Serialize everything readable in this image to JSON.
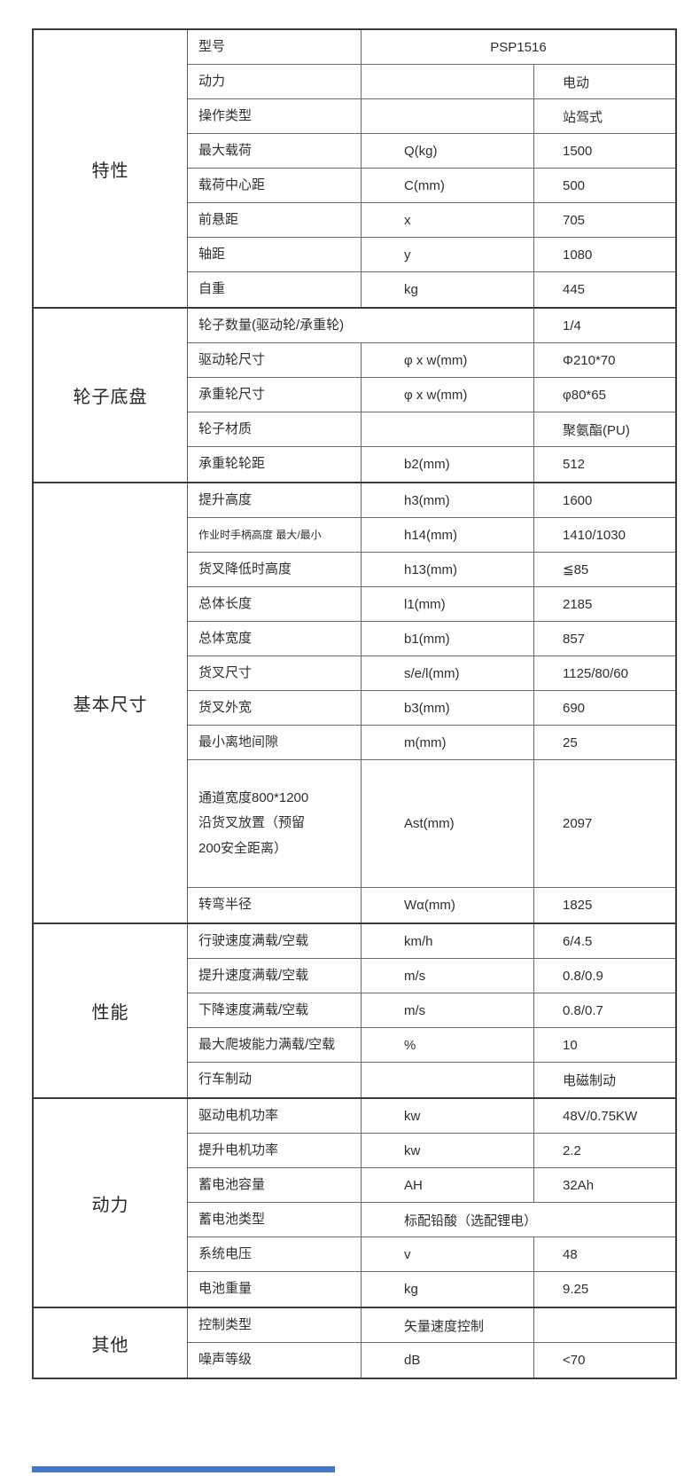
{
  "table": {
    "outer_border_color": "#3a3a3a",
    "grid_line_color": "#6a6a6a",
    "text_color": "#2e2e2e",
    "sections": [
      {
        "label": "特性",
        "rows": [
          {
            "param": "型号",
            "symbol": "",
            "value": "PSP1516"
          },
          {
            "param": "动力",
            "symbol": "",
            "value": "电动"
          },
          {
            "param": "操作类型",
            "symbol": "",
            "value": "站驾式"
          },
          {
            "param": "最大载荷",
            "symbol": "Q(kg)",
            "value": "1500"
          },
          {
            "param": "载荷中心距",
            "symbol": "C(mm)",
            "value": "500"
          },
          {
            "param": "前悬距",
            "symbol": "x",
            "value": "705"
          },
          {
            "param": "轴距",
            "symbol": "y",
            "value": "1080"
          },
          {
            "param": "自重",
            "symbol": "kg",
            "value": "445"
          }
        ]
      },
      {
        "label": "轮子底盘",
        "rows": [
          {
            "param": "轮子数量(驱动轮/承重轮)",
            "symbol": "",
            "value": "1/4"
          },
          {
            "param": "驱动轮尺寸",
            "symbol": "φ x w(mm)",
            "value": "Φ210*70"
          },
          {
            "param": "承重轮尺寸",
            "symbol": "φ x w(mm)",
            "value": "φ80*65"
          },
          {
            "param": "轮子材质",
            "symbol": "",
            "value": "聚氨酯(PU)"
          },
          {
            "param": "承重轮轮距",
            "symbol": "b2(mm)",
            "value": "512"
          }
        ]
      },
      {
        "label": "基本尺寸",
        "rows": [
          {
            "param": "提升高度",
            "symbol": "h3(mm)",
            "value": "1600"
          },
          {
            "param": "作业时手柄高度 最大/最小",
            "symbol": "h14(mm)",
            "value": "1410/1030"
          },
          {
            "param": "货叉降低时高度",
            "symbol": "h13(mm)",
            "value": "≦85"
          },
          {
            "param": "总体长度",
            "symbol": "l1(mm)",
            "value": "2185"
          },
          {
            "param": "总体宽度",
            "symbol": "b1(mm)",
            "value": "857"
          },
          {
            "param": "货叉尺寸",
            "symbol": "s/e/l(mm)",
            "value": "1125/80/60"
          },
          {
            "param": "货叉外宽",
            "symbol": "b3(mm)",
            "value": "690"
          },
          {
            "param": "最小离地间隙",
            "symbol": "m(mm)",
            "value": "25"
          },
          {
            "param": "通道宽度800*1200\n沿货叉放置（预留\n200安全距离）",
            "symbol": "Ast(mm)",
            "value": "2097"
          },
          {
            "param": "转弯半径",
            "symbol": "Wα(mm)",
            "value": "1825"
          }
        ]
      },
      {
        "label": "性能",
        "rows": [
          {
            "param": "行驶速度满载/空载",
            "symbol": "km/h",
            "value": "6/4.5"
          },
          {
            "param": "提升速度满载/空载",
            "symbol": "m/s",
            "value": "0.8/0.9"
          },
          {
            "param": "下降速度满载/空载",
            "symbol": "m/s",
            "value": "0.8/0.7"
          },
          {
            "param": "最大爬坡能力满载/空载",
            "symbol": "%",
            "value": "10"
          },
          {
            "param": "行车制动",
            "symbol": "",
            "value": "电磁制动"
          }
        ]
      },
      {
        "label": "动力",
        "rows": [
          {
            "param": "驱动电机功率",
            "symbol": "kw",
            "value": "48V/0.75KW"
          },
          {
            "param": "提升电机功率",
            "symbol": "kw",
            "value": "2.2"
          },
          {
            "param": "蓄电池容量",
            "symbol": "AH",
            "value": "32Ah"
          },
          {
            "param": "蓄电池类型",
            "symbol": "标配铅酸（选配锂电）",
            "value": ""
          },
          {
            "param": "系统电压",
            "symbol": "v",
            "value": "48"
          },
          {
            "param": "电池重量",
            "symbol": "kg",
            "value": "9.25"
          }
        ]
      },
      {
        "label": "其他",
        "rows": [
          {
            "param": "控制类型",
            "symbol": "矢量速度控制",
            "value": ""
          },
          {
            "param": "噪声等级",
            "symbol": "dB",
            "value": "<70"
          }
        ]
      }
    ]
  },
  "accent_bar": {
    "color": "#4577c9"
  }
}
